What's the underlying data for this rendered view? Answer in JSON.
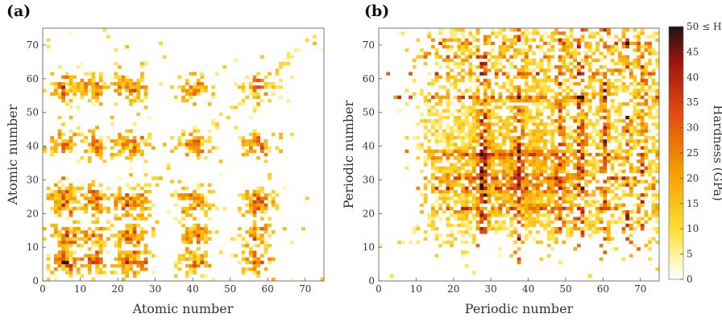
{
  "chart_data": [
    {
      "panel_label": "(a)",
      "type": "heatmap",
      "xlabel": "Atomic number",
      "ylabel": "Atomic number",
      "xlim": [
        0,
        75
      ],
      "ylim": [
        0,
        75
      ],
      "xticks": [
        0,
        10,
        20,
        30,
        40,
        50,
        60,
        70
      ],
      "yticks": [
        0,
        10,
        20,
        30,
        40,
        50,
        60,
        70
      ],
      "value_units": "GPa",
      "description_of_pattern": "sparse element-pair hardness map; hot bands at atomic numbers ~5 (B), ~22 (Ti), ~40 (Zr), ~57 (La)",
      "hot_bands": [
        5,
        6,
        13,
        22,
        24,
        40,
        57
      ],
      "peak_clusters": [
        {
          "x": 5,
          "y": 5,
          "value": 50
        },
        {
          "x": 6,
          "y": 5,
          "value": 48
        },
        {
          "x": 5,
          "y": 22,
          "value": 40
        },
        {
          "x": 22,
          "y": 5,
          "value": 42
        },
        {
          "x": 22,
          "y": 22,
          "value": 38
        },
        {
          "x": 5,
          "y": 40,
          "value": 32
        },
        {
          "x": 40,
          "y": 5,
          "value": 30
        },
        {
          "x": 22,
          "y": 40,
          "value": 26
        },
        {
          "x": 5,
          "y": 30,
          "value": 28
        },
        {
          "x": 27,
          "y": 5,
          "value": 34
        },
        {
          "x": 12,
          "y": 5,
          "value": 30
        },
        {
          "x": 5,
          "y": 58,
          "value": 20
        },
        {
          "x": 57,
          "y": 22,
          "value": 22
        }
      ]
    },
    {
      "panel_label": "(b)",
      "type": "heatmap",
      "xlabel": "Periodic number",
      "ylabel": "Periodic number",
      "xlim": [
        0,
        75
      ],
      "ylim": [
        0,
        75
      ],
      "xticks": [
        0,
        10,
        20,
        30,
        40,
        50,
        60,
        70
      ],
      "yticks": [
        0,
        10,
        20,
        30,
        40,
        50,
        60,
        70
      ],
      "value_units": "GPa",
      "description_of_pattern": "dense cloud of values concentrated at periodic numbers 20-75 with dark columns near 27, 37, 48, 53, 60, 66, 70 and a dark row near 54",
      "hot_columns": [
        27,
        28,
        37,
        48,
        53,
        54,
        60,
        66,
        70
      ],
      "hot_rows": [
        21,
        27,
        30,
        37,
        54,
        61,
        66,
        70
      ],
      "peak_clusters": [
        {
          "x": 53,
          "y": 54,
          "value": 50
        },
        {
          "x": 54,
          "y": 54,
          "value": 50
        },
        {
          "x": 37,
          "y": 54,
          "value": 48
        },
        {
          "x": 60,
          "y": 54,
          "value": 45
        },
        {
          "x": 66,
          "y": 70,
          "value": 50
        },
        {
          "x": 28,
          "y": 27,
          "value": 40
        },
        {
          "x": 37,
          "y": 30,
          "value": 38
        },
        {
          "x": 48,
          "y": 27,
          "value": 42
        },
        {
          "x": 53,
          "y": 61,
          "value": 44
        },
        {
          "x": 70,
          "y": 37,
          "value": 36
        },
        {
          "x": 60,
          "y": 21,
          "value": 34
        }
      ]
    }
  ],
  "colorbar": {
    "title": "Hardness (GPa)",
    "min": 0,
    "max": 50,
    "ticks": [
      {
        "value": 0,
        "label": "0"
      },
      {
        "value": 5,
        "label": "5"
      },
      {
        "value": 10,
        "label": "10"
      },
      {
        "value": 15,
        "label": "15"
      },
      {
        "value": 20,
        "label": "20"
      },
      {
        "value": 25,
        "label": "25"
      },
      {
        "value": 30,
        "label": "30"
      },
      {
        "value": 35,
        "label": "35"
      },
      {
        "value": 40,
        "label": "40"
      },
      {
        "value": 45,
        "label": "45"
      },
      {
        "value": 50,
        "label": "50 ≤ H"
      }
    ],
    "colors": [
      "#ffffff",
      "#fff5b0",
      "#ffdd33",
      "#f5a000",
      "#e24a10",
      "#a0140c",
      "#1a1414"
    ]
  }
}
